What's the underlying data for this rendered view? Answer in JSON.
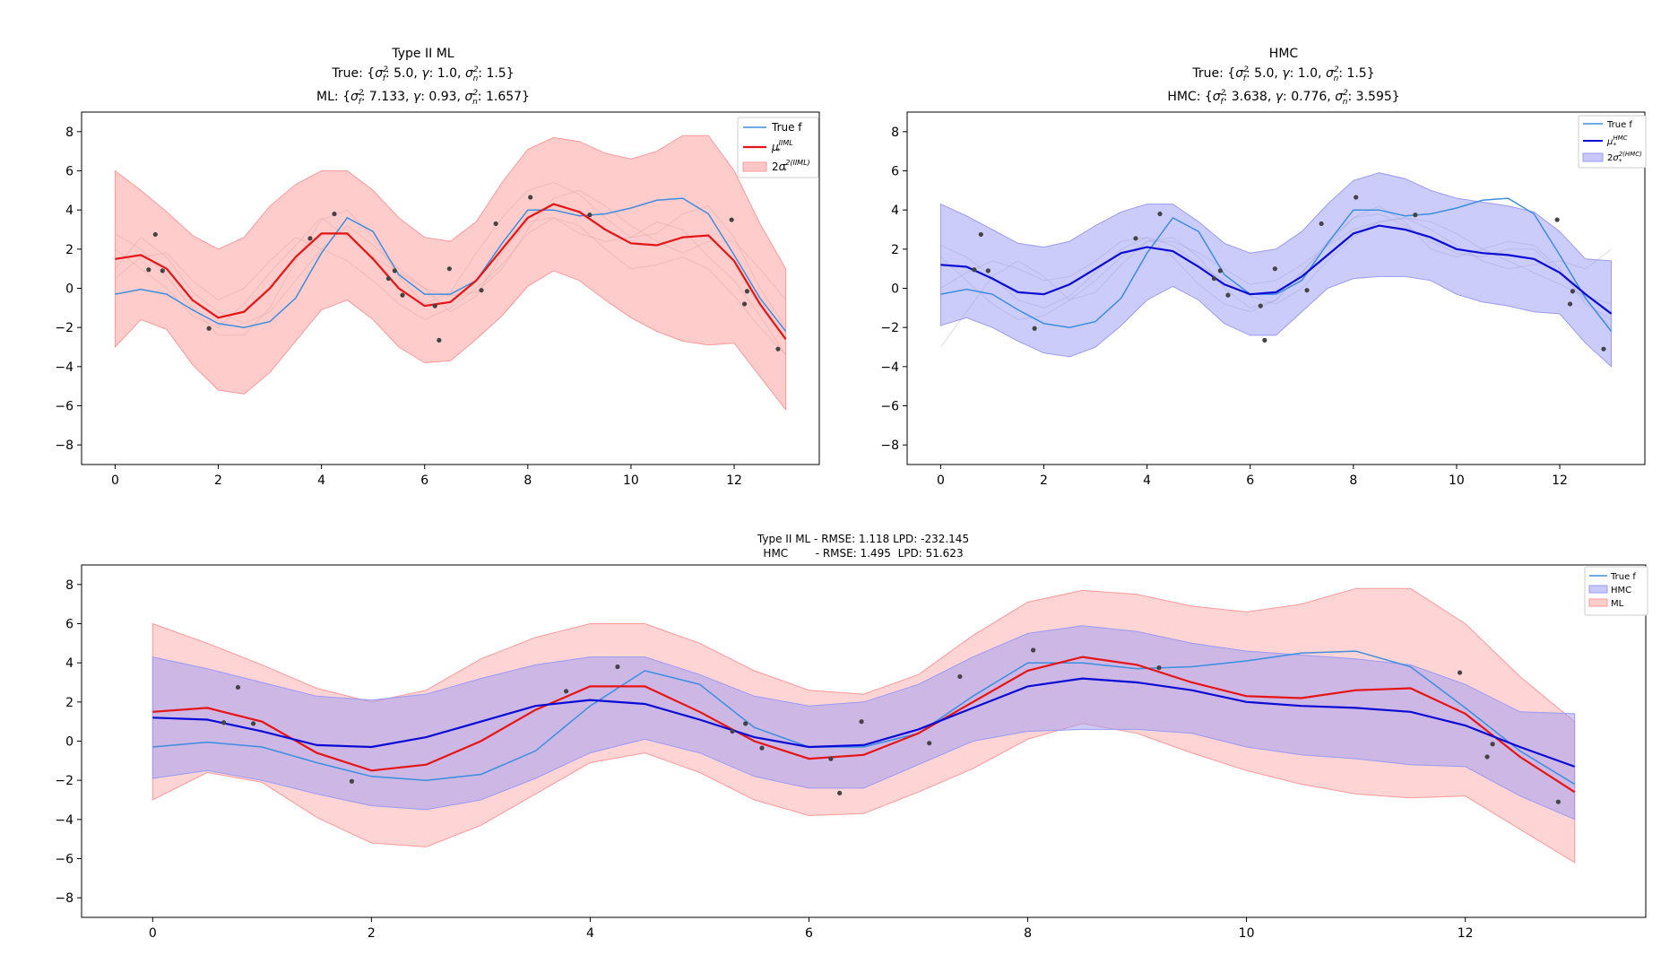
{
  "chart_data": [
    {
      "type": "line",
      "id": "ml",
      "title": "Type II ML",
      "subtitle_true": "True: {σ_f²: 5.0, γ: 1.0, σ_n²: 1.5}",
      "subtitle_est": "ML: {σ_f²: 7.133, γ: 0.93, σ_n²: 1.657}",
      "xlim": [
        -0.65,
        13.65
      ],
      "ylim": [
        -9,
        9
      ],
      "xticks": [
        0,
        2,
        4,
        6,
        8,
        10,
        12
      ],
      "yticks": [
        -8,
        -6,
        -4,
        -2,
        0,
        2,
        4,
        6,
        8
      ],
      "legend": {
        "position": "top-right",
        "entries": [
          "True f",
          "μ*^IIML",
          "2σ*^2(IIML)"
        ]
      },
      "grid": false
    },
    {
      "type": "line",
      "id": "hmc",
      "title": "HMC",
      "subtitle_true": "True: {σ_f²: 5.0, γ: 1.0, σ_n²: 1.5}",
      "subtitle_est": "HMC: {σ_f²: 3.638, γ: 0.776, σ_n²: 3.595}",
      "xlim": [
        -0.65,
        13.65
      ],
      "ylim": [
        -9,
        9
      ],
      "xticks": [
        0,
        2,
        4,
        6,
        8,
        10,
        12
      ],
      "yticks": [
        -8,
        -6,
        -4,
        -2,
        0,
        2,
        4,
        6,
        8
      ],
      "legend": {
        "position": "top-right",
        "entries": [
          "True f",
          "μ*^HMC",
          "2σ*^2(HMC)"
        ]
      },
      "grid": false
    },
    {
      "type": "line",
      "id": "compare",
      "title_line1": "Type II ML - RMSE: 1.118  LPD: -232.145",
      "title_line2": "HMC        - RMSE: 1.495  LPD: 51.623",
      "xlim": [
        -0.65,
        13.65
      ],
      "ylim": [
        -9,
        9
      ],
      "xticks": [
        0,
        2,
        4,
        6,
        8,
        10,
        12
      ],
      "yticks": [
        -8,
        -6,
        -4,
        -2,
        0,
        2,
        4,
        6,
        8
      ],
      "legend": {
        "position": "top-right",
        "entries": [
          "True f",
          "HMC",
          "ML"
        ]
      },
      "grid": false
    }
  ],
  "series": {
    "x": [
      0,
      0.5,
      1,
      1.5,
      2,
      2.5,
      3,
      3.5,
      4,
      4.5,
      5,
      5.5,
      6,
      6.5,
      7,
      7.5,
      8,
      8.5,
      9,
      9.5,
      10,
      10.5,
      11,
      11.5,
      12,
      12.5,
      13
    ],
    "true_f": [
      -0.3,
      -0.05,
      -0.3,
      -1.1,
      -1.8,
      -2.0,
      -1.7,
      -0.5,
      1.8,
      3.6,
      2.9,
      0.7,
      -0.3,
      -0.3,
      0.4,
      2.3,
      4.0,
      4.0,
      3.7,
      3.8,
      4.1,
      4.5,
      4.6,
      3.8,
      1.7,
      -0.5,
      -2.2
    ],
    "ml_mean": [
      1.5,
      1.7,
      1.0,
      -0.6,
      -1.5,
      -1.2,
      0.0,
      1.6,
      2.8,
      2.8,
      1.5,
      0.0,
      -0.9,
      -0.7,
      0.4,
      2.0,
      3.6,
      4.3,
      3.9,
      3.0,
      2.3,
      2.2,
      2.6,
      2.7,
      1.4,
      -0.8,
      -2.6
    ],
    "ml_upper": [
      6.0,
      5.0,
      3.9,
      2.7,
      2.0,
      2.6,
      4.2,
      5.3,
      6.0,
      6.0,
      5.0,
      3.6,
      2.6,
      2.4,
      3.4,
      5.4,
      7.1,
      7.7,
      7.5,
      6.9,
      6.6,
      7.0,
      7.8,
      7.8,
      6.0,
      3.3,
      1.0
    ],
    "ml_lower": [
      -3.0,
      -1.6,
      -2.1,
      -3.9,
      -5.2,
      -5.4,
      -4.3,
      -2.7,
      -1.1,
      -0.6,
      -1.6,
      -3.0,
      -3.8,
      -3.7,
      -2.6,
      -1.4,
      0.1,
      0.9,
      0.4,
      -0.6,
      -1.5,
      -2.2,
      -2.7,
      -2.9,
      -2.8,
      -4.5,
      -6.2
    ],
    "hmc_mean": [
      1.2,
      1.1,
      0.5,
      -0.2,
      -0.3,
      0.2,
      1.0,
      1.8,
      2.1,
      1.9,
      1.1,
      0.2,
      -0.3,
      -0.2,
      0.6,
      1.7,
      2.8,
      3.2,
      3.0,
      2.6,
      2.0,
      1.8,
      1.7,
      1.5,
      0.8,
      -0.3,
      -1.3
    ],
    "hmc_upper": [
      4.3,
      3.7,
      3.0,
      2.3,
      2.1,
      2.4,
      3.2,
      3.9,
      4.3,
      4.3,
      3.4,
      2.3,
      1.8,
      2.0,
      2.9,
      4.3,
      5.5,
      5.9,
      5.6,
      5.0,
      4.6,
      4.4,
      4.2,
      3.9,
      2.9,
      1.5,
      1.4
    ],
    "hmc_lower": [
      -1.9,
      -1.5,
      -2.0,
      -2.7,
      -3.3,
      -3.5,
      -3.0,
      -1.9,
      -0.6,
      0.1,
      -0.6,
      -1.8,
      -2.4,
      -2.4,
      -1.2,
      0.0,
      0.5,
      0.6,
      0.6,
      0.4,
      -0.3,
      -0.7,
      -0.9,
      -1.2,
      -1.3,
      -2.8,
      -4.0
    ],
    "observations": {
      "x": [
        0.65,
        0.78,
        0.92,
        1.82,
        3.78,
        4.25,
        5.3,
        5.42,
        5.57,
        6.2,
        6.28,
        6.48,
        7.1,
        7.38,
        8.05,
        9.2,
        11.95,
        12.2,
        12.25,
        12.85
      ],
      "y": [
        0.95,
        2.75,
        0.9,
        -2.05,
        2.55,
        3.8,
        0.5,
        0.9,
        -0.35,
        -0.9,
        -2.65,
        1.0,
        -0.1,
        3.3,
        4.65,
        3.75,
        3.5,
        -0.8,
        -0.15,
        -3.1
      ]
    },
    "samples_ml": [
      [
        2.8,
        2.0,
        0.6,
        -1.0,
        -2.4,
        -2.4,
        -1.0,
        1.4,
        3.5,
        4.0,
        2.6,
        0.6,
        -0.8,
        -0.2,
        1.8,
        3.6,
        5.0,
        5.4,
        4.8,
        3.6,
        2.6,
        2.8,
        3.8,
        4.2,
        2.6,
        0.0,
        -2.0
      ],
      [
        0.5,
        1.6,
        1.8,
        0.4,
        -0.6,
        0.0,
        1.4,
        2.6,
        2.0,
        1.4,
        0.4,
        -0.8,
        -1.6,
        -1.0,
        0.0,
        1.2,
        2.8,
        3.6,
        3.2,
        2.0,
        1.0,
        1.2,
        1.6,
        1.0,
        -0.4,
        -2.0,
        -3.4
      ],
      [
        2.0,
        1.0,
        0.0,
        -1.4,
        -2.0,
        -0.8,
        0.8,
        2.2,
        3.6,
        2.6,
        1.6,
        0.8,
        0.0,
        -0.4,
        -0.2,
        1.0,
        3.0,
        4.6,
        5.0,
        4.2,
        3.2,
        2.4,
        1.8,
        2.4,
        2.4,
        1.0,
        -0.6
      ],
      [
        1.0,
        2.6,
        1.6,
        -0.2,
        -1.2,
        -1.8,
        -1.2,
        0.4,
        2.0,
        3.2,
        2.2,
        1.0,
        0.0,
        -1.2,
        -0.4,
        1.8,
        3.4,
        3.6,
        2.8,
        2.4,
        2.6,
        3.4,
        3.0,
        1.6,
        0.4,
        -1.4,
        -3.4
      ]
    ],
    "samples_hmc": [
      [
        -3.0,
        -1.2,
        0.6,
        1.4,
        0.6,
        -0.6,
        -0.2,
        1.2,
        2.4,
        2.6,
        1.6,
        0.0,
        -1.0,
        -0.6,
        0.8,
        2.2,
        3.6,
        4.2,
        3.4,
        2.0,
        1.6,
        2.0,
        2.4,
        2.2,
        1.0,
        -0.8,
        -1.6
      ],
      [
        2.2,
        1.6,
        0.6,
        -0.6,
        -1.0,
        -0.4,
        0.8,
        2.0,
        2.6,
        2.2,
        1.2,
        0.4,
        -0.4,
        -0.8,
        0.0,
        1.4,
        2.6,
        3.4,
        3.6,
        3.0,
        2.2,
        1.4,
        1.0,
        1.2,
        1.4,
        1.0,
        2.0
      ],
      [
        0.0,
        0.8,
        1.4,
        1.0,
        0.4,
        0.6,
        1.4,
        2.4,
        2.6,
        1.6,
        0.2,
        -0.8,
        -1.2,
        -0.6,
        0.8,
        2.4,
        3.6,
        3.8,
        3.2,
        2.4,
        1.8,
        1.6,
        2.0,
        2.0,
        0.8,
        -0.6,
        -2.0
      ],
      [
        1.6,
        0.4,
        -0.8,
        -1.6,
        -1.4,
        -0.6,
        0.4,
        1.6,
        2.4,
        2.4,
        1.8,
        1.0,
        0.2,
        0.4,
        1.2,
        2.2,
        3.0,
        3.4,
        3.6,
        3.4,
        2.8,
        2.0,
        1.4,
        0.8,
        0.2,
        -0.4,
        -0.8
      ]
    ]
  },
  "colors": {
    "true_f": "#3b8ee0",
    "ml_mean": "#e61414",
    "ml_band": "#ff9999",
    "hmc_mean": "#0b0bd6",
    "hmc_band": "#9a9af5",
    "samples": "#aaaaaa",
    "points": "#444444"
  }
}
